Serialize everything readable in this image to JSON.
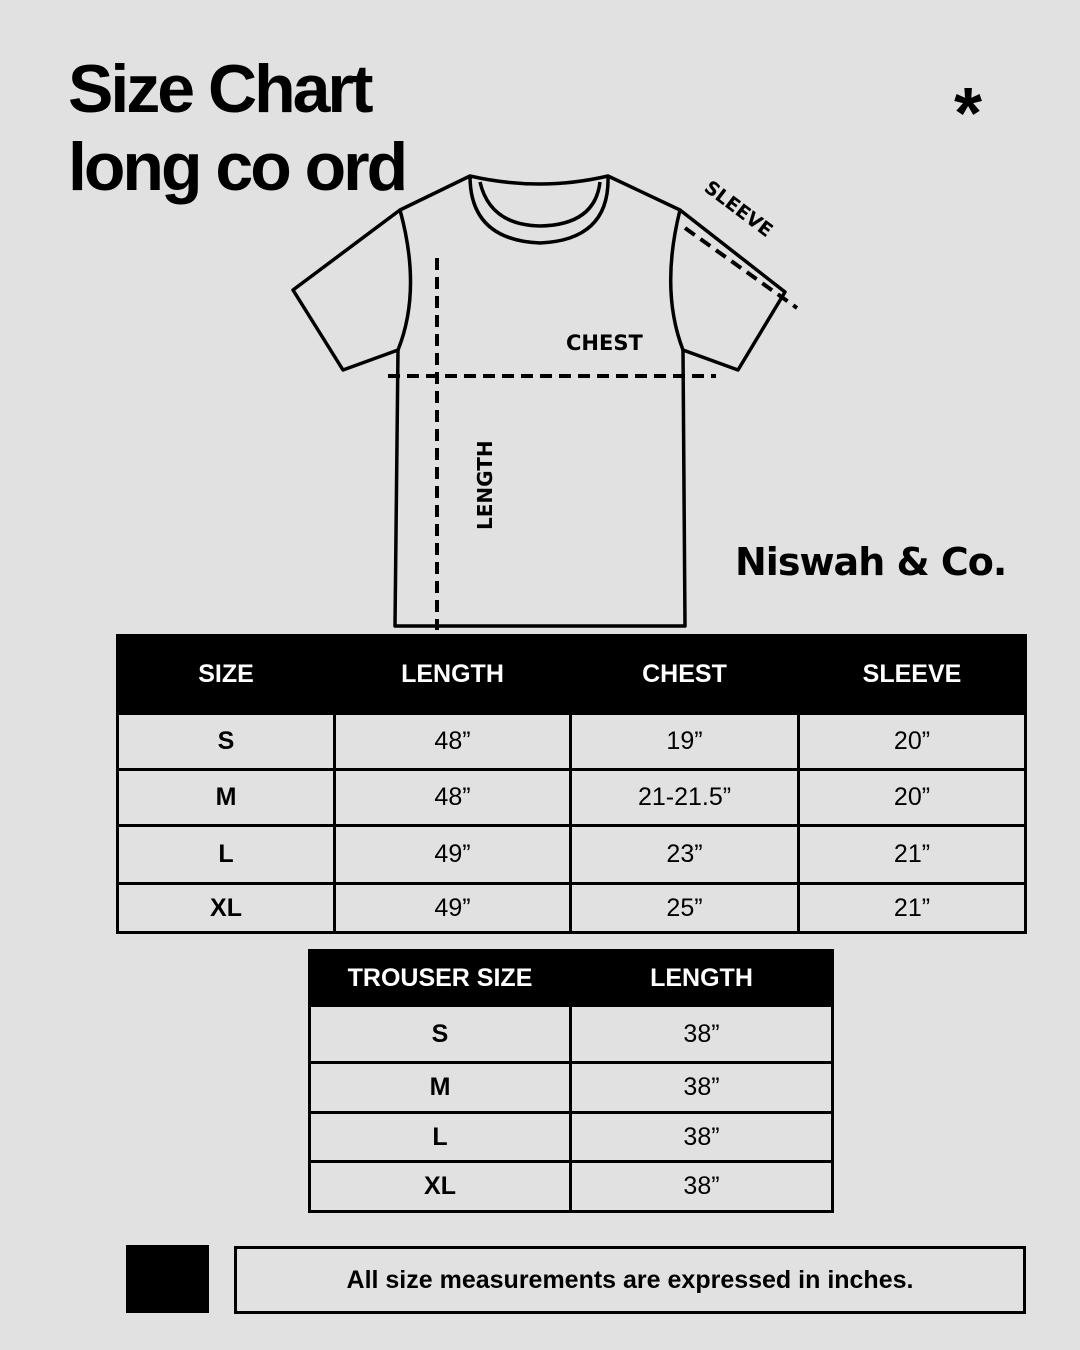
{
  "title": {
    "line1": "Size Chart",
    "line2": "long co ord"
  },
  "asterisk": "*",
  "brand": "Niswah & Co.",
  "diagram": {
    "chest_label": "CHEST",
    "length_label": "LENGTH",
    "sleeve_label": "SLEEVE"
  },
  "top_table": {
    "headers": [
      "SIZE",
      "LENGTH",
      "CHEST",
      "SLEEVE"
    ],
    "rows": [
      [
        "S",
        "48”",
        "19”",
        "20”"
      ],
      [
        "M",
        "48”",
        "21-21.5”",
        "20”"
      ],
      [
        "L",
        "49”",
        "23”",
        "21”"
      ],
      [
        "XL",
        "49”",
        "25”",
        "21”"
      ]
    ]
  },
  "trouser_table": {
    "headers": [
      "TROUSER SIZE",
      "LENGTH"
    ],
    "rows": [
      [
        "S",
        "38”"
      ],
      [
        "M",
        "38”"
      ],
      [
        "L",
        "38”"
      ],
      [
        "XL",
        "38”"
      ]
    ]
  },
  "footer": {
    "note": "All size measurements are expressed in inches."
  }
}
